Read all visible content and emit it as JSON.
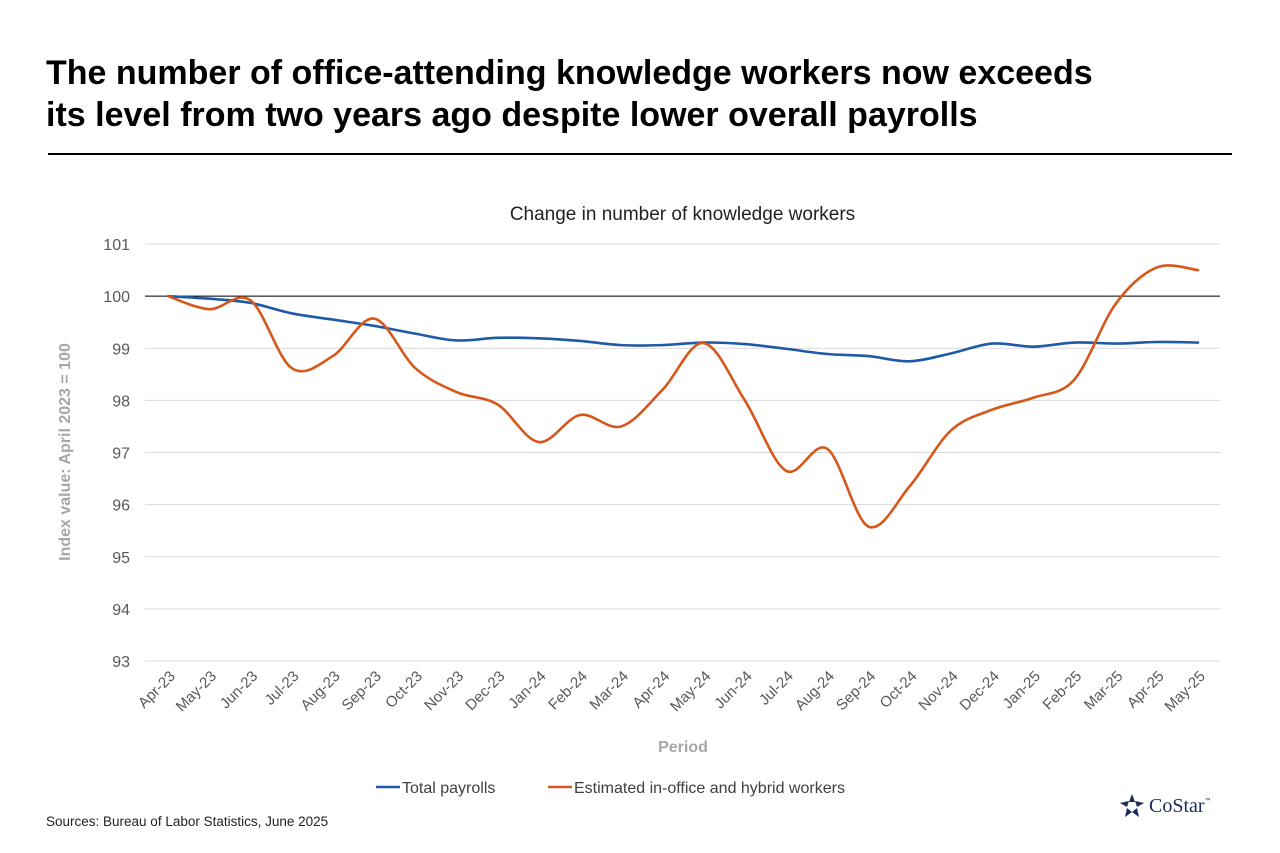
{
  "headline": {
    "line1": "The number of office-attending knowledge workers now exceeds",
    "line2": "its level from two years ago despite lower overall payrolls"
  },
  "source": "Sources: Bureau of Labor Statistics, June 2025",
  "logo": {
    "text": "CoStar",
    "tm": "™",
    "color": "#1a2b57"
  },
  "chart_data": {
    "type": "line",
    "title": "Change in number of knowledge workers",
    "xlabel": "Period",
    "ylabel": "Index value: April 2023 = 100",
    "ylim": [
      93,
      101
    ],
    "yticks": [
      93,
      94,
      95,
      96,
      97,
      98,
      99,
      100,
      101
    ],
    "reference_line": 100,
    "grid": true,
    "legend": "bottom",
    "categories": [
      "Apr-23",
      "May-23",
      "Jun-23",
      "Jul-23",
      "Aug-23",
      "Sep-23",
      "Oct-23",
      "Nov-23",
      "Dec-23",
      "Jan-24",
      "Feb-24",
      "Mar-24",
      "Apr-24",
      "May-24",
      "Jun-24",
      "Jul-24",
      "Aug-24",
      "Sep-24",
      "Oct-24",
      "Nov-24",
      "Dec-24",
      "Jan-25",
      "Feb-25",
      "Mar-25",
      "Apr-25",
      "May-25"
    ],
    "series": [
      {
        "name": "Total payrolls",
        "color": "#1f5aa6",
        "values": [
          100.0,
          99.95,
          99.87,
          99.67,
          99.55,
          99.43,
          99.28,
          99.15,
          99.2,
          99.19,
          99.14,
          99.06,
          99.06,
          99.11,
          99.08,
          98.99,
          98.89,
          98.85,
          98.75,
          98.9,
          99.09,
          99.03,
          99.11,
          99.09,
          99.12,
          99.11
        ]
      },
      {
        "name": "Estimated in-office and hybrid workers",
        "color": "#d6571a",
        "values": [
          100.0,
          99.75,
          99.92,
          98.62,
          98.85,
          99.57,
          98.62,
          98.16,
          97.92,
          97.2,
          97.72,
          97.5,
          98.2,
          99.1,
          98.0,
          96.65,
          97.07,
          95.58,
          96.35,
          97.42,
          97.82,
          98.05,
          98.4,
          99.85,
          100.55,
          100.5
        ]
      }
    ]
  }
}
